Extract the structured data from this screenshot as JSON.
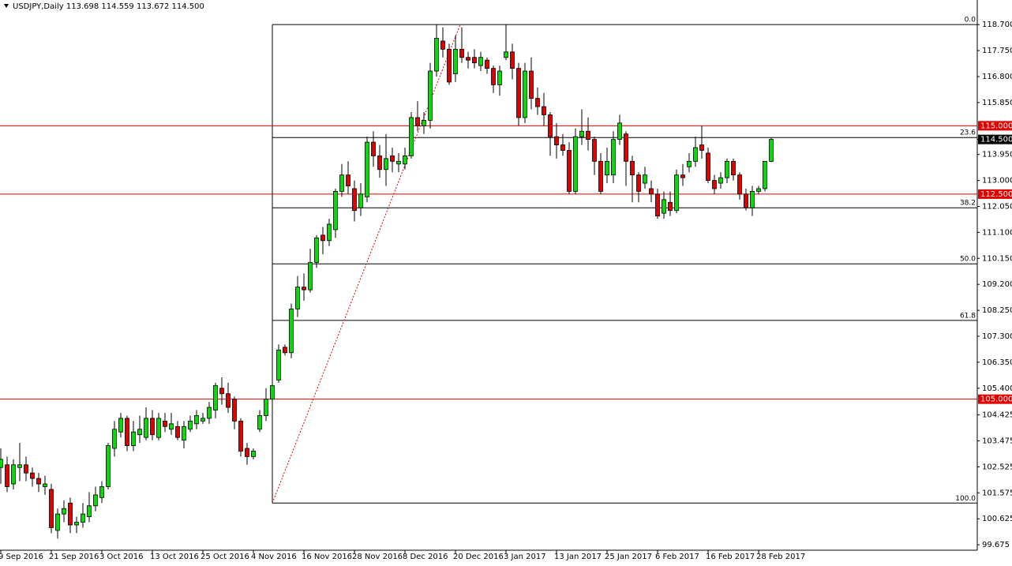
{
  "chart_data": {
    "type": "candlestick",
    "title": "USDJPY,Daily  113.698 114.559 113.672 114.500",
    "ylim": [
      99.62,
      119.6
    ],
    "yticks": [
      {
        "value": 118.7,
        "label": "118.700"
      },
      {
        "value": 117.75,
        "label": "117.750"
      },
      {
        "value": 116.8,
        "label": "116.800"
      },
      {
        "value": 115.85,
        "label": "115.850"
      },
      {
        "value": 113.95,
        "label": "113.950"
      },
      {
        "value": 113,
        "label": "113.000"
      },
      {
        "value": 112.05,
        "label": "112.050"
      },
      {
        "value": 111.1,
        "label": "111.100"
      },
      {
        "value": 110.15,
        "label": "110.150"
      },
      {
        "value": 109.2,
        "label": "109.200"
      },
      {
        "value": 108.25,
        "label": "108.250"
      },
      {
        "value": 107.3,
        "label": "107.300"
      },
      {
        "value": 106.35,
        "label": "106.350"
      },
      {
        "value": 105.4,
        "label": "105.400"
      },
      {
        "value": 104.425,
        "label": "104.425"
      },
      {
        "value": 103.475,
        "label": "103.475"
      },
      {
        "value": 102.525,
        "label": "102.525"
      },
      {
        "value": 101.575,
        "label": "101.575"
      },
      {
        "value": 100.625,
        "label": "100.625"
      },
      {
        "value": 99.675,
        "label": "99.675"
      }
    ],
    "levels": [
      {
        "value": 115,
        "label": "115.000"
      },
      {
        "value": 112.5,
        "label": "112.500"
      },
      {
        "value": 105,
        "label": "105.000"
      }
    ],
    "price_line": {
      "value": 114.5,
      "label": "114.500"
    },
    "fib_levels": [
      {
        "value": 118.7,
        "label": "0.0"
      },
      {
        "value": 114.57,
        "label": "23.6"
      },
      {
        "value": 112.0,
        "label": "38.2"
      },
      {
        "value": 109.95,
        "label": "50.0"
      },
      {
        "value": 107.88,
        "label": "61.8"
      },
      {
        "value": 101.2,
        "label": "100.0"
      }
    ],
    "up_color": "#00e000",
    "down_color": "#e00000",
    "level_color": "#e00000",
    "categories": [
      "9 Sep 2016",
      null,
      null,
      null,
      null,
      null,
      null,
      null,
      "21 Sep 2016",
      null,
      null,
      null,
      null,
      null,
      null,
      null,
      "3 Oct 2016",
      null,
      null,
      null,
      null,
      null,
      null,
      null,
      "13 Oct 2016",
      null,
      null,
      null,
      null,
      null,
      null,
      null,
      "25 Oct 2016",
      null,
      null,
      null,
      null,
      null,
      null,
      null,
      "4 Nov 2016",
      null,
      null,
      null,
      null,
      null,
      null,
      null,
      "16 Nov 2016",
      null,
      null,
      null,
      null,
      null,
      null,
      null,
      "28 Nov 2016",
      null,
      null,
      null,
      null,
      null,
      null,
      null,
      "8 Dec 2016",
      null,
      null,
      null,
      null,
      null,
      null,
      null,
      "20 Dec 2016",
      null,
      null,
      null,
      null,
      null,
      null,
      null,
      "3 Jan 2017",
      null,
      null,
      null,
      null,
      null,
      null,
      null,
      "13 Jan 2017",
      null,
      null,
      null,
      null,
      null,
      null,
      null,
      "25 Jan 2017",
      null,
      null,
      null,
      null,
      null,
      null,
      null,
      "6 Feb 2017",
      null,
      null,
      null,
      null,
      null,
      null,
      null,
      "16 Feb 2017",
      null,
      null,
      null,
      null,
      null,
      null,
      null,
      "28 Feb 2017",
      null,
      null
    ],
    "open": [
      102.5,
      102.6,
      101.9,
      102.5,
      102.6,
      102.3,
      102.1,
      101.8,
      101.7,
      100.2,
      100.8,
      101.2,
      100.4,
      100.5,
      100.7,
      101.1,
      101.4,
      101.8,
      103.2,
      103.8,
      104.3,
      103.3,
      103.7,
      103.6,
      104.3,
      103.6,
      104.2,
      103.9,
      104.0,
      103.5,
      103.9,
      104.1,
      104.2,
      104.3,
      104.6,
      105.4,
      105.2,
      105.0,
      104.2,
      103.2,
      102.9,
      103.9,
      104.4,
      105.0,
      105.7,
      106.9,
      106.7,
      108.3,
      109.1,
      109.0,
      110.0,
      111.0,
      110.8,
      111.2,
      112.6,
      113.2,
      112.7,
      112.0,
      112.4,
      114.4,
      113.9,
      113.4,
      113.9,
      113.6,
      113.6,
      113.9,
      115.3,
      115.0,
      115.2,
      117.0,
      118.1,
      117.8,
      116.9,
      117.8,
      117.5,
      117.5,
      117.2,
      117.4,
      117.1,
      116.5,
      117.5,
      117.7,
      117.1,
      115.3,
      117.0,
      116.0,
      115.7,
      115.4,
      114.6,
      114.3,
      114.1,
      112.6,
      114.6,
      114.8,
      114.5,
      113.7,
      113.2,
      113.2,
      114.5,
      114.7,
      113.7,
      113.2,
      112.9,
      112.7,
      112.5,
      111.8,
      112.2,
      111.9,
      113.2,
      113.5,
      113.7,
      114.3,
      114.0,
      113.0,
      112.9,
      113.1,
      113.7,
      113.2,
      112.5,
      112.0,
      112.6,
      112.7,
      113.698
    ],
    "high": [
      103.2,
      102.9,
      102.8,
      103.4,
      102.9,
      102.5,
      102.3,
      102.2,
      101.9,
      101.0,
      101.3,
      101.4,
      100.7,
      101.2,
      101.6,
      101.8,
      102.0,
      103.4,
      104.2,
      104.5,
      104.4,
      104.2,
      104.4,
      104.7,
      104.6,
      104.5,
      104.5,
      104.5,
      104.2,
      104.2,
      104.4,
      104.6,
      104.5,
      104.9,
      105.6,
      105.8,
      105.6,
      105.1,
      104.3,
      103.4,
      103.2,
      104.6,
      105.4,
      105.9,
      107.0,
      107.0,
      108.5,
      109.5,
      109.6,
      110.5,
      111.0,
      111.3,
      111.6,
      112.7,
      113.6,
      113.7,
      113.0,
      112.9,
      114.6,
      114.8,
      114.3,
      114.7,
      114.2,
      114.0,
      114.2,
      115.5,
      115.9,
      115.5,
      117.3,
      118.7,
      118.6,
      118.0,
      118.3,
      118.6,
      117.7,
      117.8,
      117.7,
      117.5,
      117.2,
      117.2,
      118.7,
      118.0,
      117.3,
      117.3,
      117.5,
      116.4,
      116.2,
      115.5,
      115.1,
      114.7,
      114.4,
      114.9,
      115.6,
      115.3,
      114.6,
      114.0,
      114.2,
      114.8,
      115.4,
      114.8,
      113.9,
      113.3,
      113.5,
      113.0,
      112.7,
      112.6,
      112.6,
      113.4,
      113.6,
      114.0,
      114.6,
      115.0,
      114.2,
      113.2,
      113.3,
      113.8,
      113.8,
      113.3,
      112.7,
      112.8,
      112.8,
      113.7,
      114.559
    ],
    "low": [
      101.9,
      101.6,
      101.7,
      102.0,
      102.0,
      101.8,
      101.6,
      101.5,
      100.1,
      99.9,
      100.5,
      100.1,
      100.1,
      100.3,
      100.5,
      100.9,
      101.2,
      101.7,
      102.9,
      103.6,
      103.1,
      103.1,
      103.4,
      103.5,
      103.5,
      103.5,
      103.8,
      103.7,
      103.5,
      103.2,
      103.8,
      103.9,
      104.1,
      104.1,
      104.3,
      104.8,
      104.5,
      103.9,
      102.9,
      102.6,
      102.8,
      103.8,
      104.2,
      104.9,
      105.6,
      106.6,
      106.5,
      108.0,
      108.6,
      108.9,
      109.8,
      110.3,
      110.6,
      110.9,
      112.4,
      112.5,
      111.5,
      111.7,
      112.2,
      113.5,
      113.1,
      112.8,
      113.3,
      113.3,
      113.4,
      113.8,
      114.8,
      114.7,
      114.9,
      116.8,
      117.5,
      116.5,
      116.6,
      117.3,
      117.1,
      117.1,
      117.0,
      116.9,
      116.2,
      116.1,
      117.4,
      116.7,
      115.0,
      115.1,
      115.6,
      115.4,
      115.0,
      113.9,
      113.8,
      113.9,
      112.5,
      112.5,
      114.3,
      114.1,
      113.2,
      112.5,
      112.9,
      112.9,
      114.3,
      112.8,
      112.2,
      112.2,
      112.7,
      112.2,
      111.6,
      111.6,
      111.7,
      111.8,
      112.8,
      113.3,
      113.5,
      113.8,
      112.9,
      112.5,
      112.7,
      112.9,
      113.0,
      112.3,
      111.9,
      111.7,
      112.5,
      112.6,
      113.672
    ],
    "close": [
      102.8,
      101.8,
      102.6,
      102.6,
      102.3,
      102.1,
      101.9,
      101.9,
      100.3,
      100.8,
      101.0,
      100.4,
      100.5,
      100.8,
      101.1,
      101.5,
      101.8,
      103.3,
      103.9,
      104.3,
      103.3,
      103.8,
      103.9,
      104.3,
      103.7,
      104.3,
      104.0,
      104.1,
      103.6,
      104.0,
      104.2,
      104.4,
      104.3,
      104.7,
      105.5,
      105.2,
      104.7,
      104.2,
      103.1,
      102.9,
      103.1,
      104.4,
      105.0,
      105.5,
      106.8,
      106.7,
      108.3,
      109.1,
      109.0,
      110.0,
      110.9,
      110.8,
      111.4,
      112.6,
      113.2,
      112.8,
      111.9,
      112.5,
      114.4,
      113.9,
      113.4,
      113.8,
      113.7,
      113.7,
      113.9,
      115.3,
      115.0,
      115.2,
      117.0,
      118.2,
      117.8,
      116.6,
      117.8,
      117.5,
      117.4,
      117.3,
      117.5,
      117.1,
      116.5,
      117.0,
      117.7,
      117.1,
      115.3,
      117.0,
      116.0,
      115.7,
      115.4,
      114.6,
      114.3,
      114.1,
      112.6,
      114.6,
      114.8,
      114.5,
      113.7,
      112.6,
      113.7,
      114.5,
      115.1,
      113.7,
      113.2,
      112.6,
      113.2,
      112.5,
      111.7,
      112.3,
      111.9,
      113.2,
      113.1,
      113.7,
      114.2,
      114.1,
      113.0,
      112.7,
      113.1,
      113.7,
      113.2,
      112.5,
      112.0,
      112.6,
      112.7,
      113.7,
      114.5
    ]
  }
}
